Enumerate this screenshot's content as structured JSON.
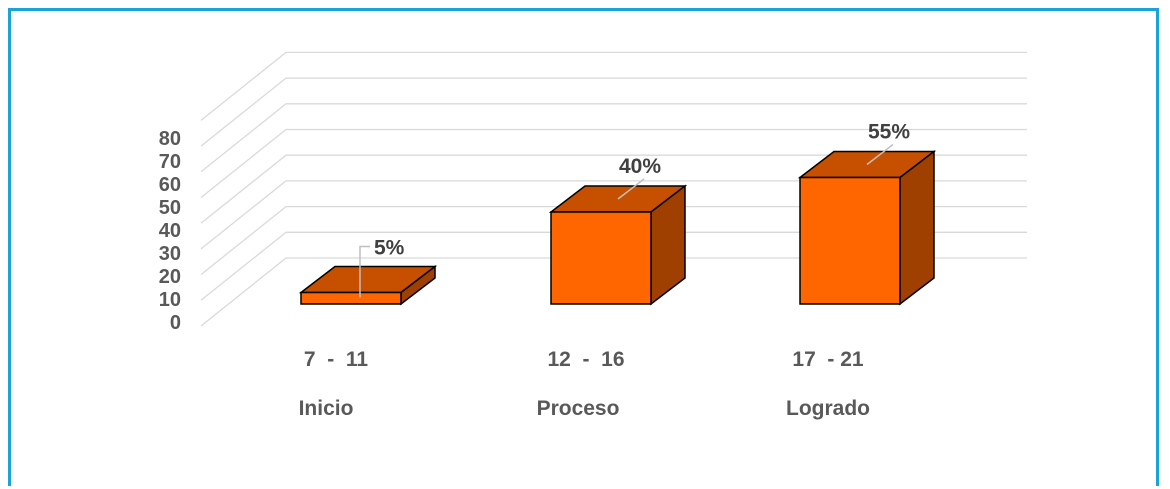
{
  "chart_data": {
    "type": "bar",
    "categories": [
      "7  -  11",
      "12  -  16",
      "17  - 21"
    ],
    "category_names": [
      "Inicio",
      "Proceso",
      "Logrado"
    ],
    "values": [
      5,
      40,
      55
    ],
    "data_labels": [
      "5%",
      "40%",
      "55%"
    ],
    "yticks": [
      "0",
      "10",
      "20",
      "30",
      "40",
      "50",
      "60",
      "70",
      "80"
    ],
    "ylim": [
      0,
      80
    ],
    "grid": true,
    "three_d": true,
    "colors": {
      "front": "#ff6600",
      "top": "#c65000",
      "side": "#a04000",
      "outline": "#000000",
      "border": "#1aa3d9"
    }
  }
}
